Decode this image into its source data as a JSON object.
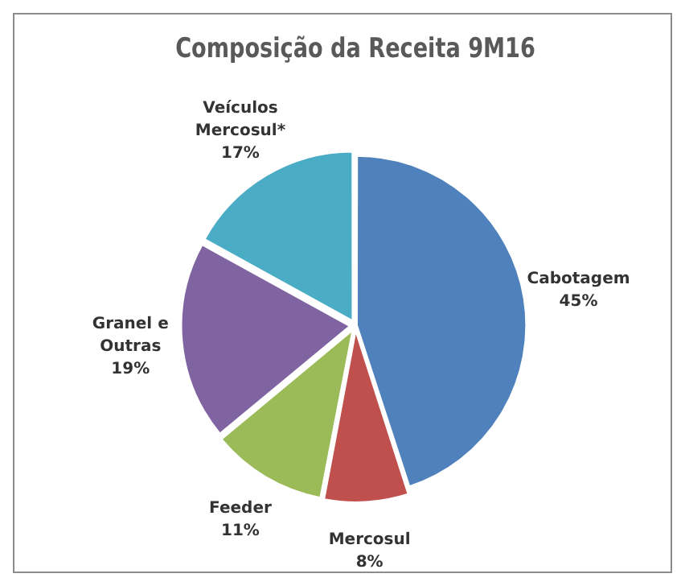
{
  "chart_data": {
    "type": "pie",
    "title": "Composição da Receita 9M16",
    "categories": [
      "Cabotagem",
      "Mercosul",
      "Feeder",
      "Granel e Outras",
      "Veículos Mercosul*"
    ],
    "values": [
      45,
      8,
      11,
      19,
      17
    ],
    "colors": [
      "#4f81bd",
      "#c0504d",
      "#9bbb59",
      "#8064a2",
      "#4bacc6"
    ],
    "value_labels": [
      "45%",
      "8%",
      "11%",
      "19%",
      "17%"
    ],
    "legend": false
  }
}
